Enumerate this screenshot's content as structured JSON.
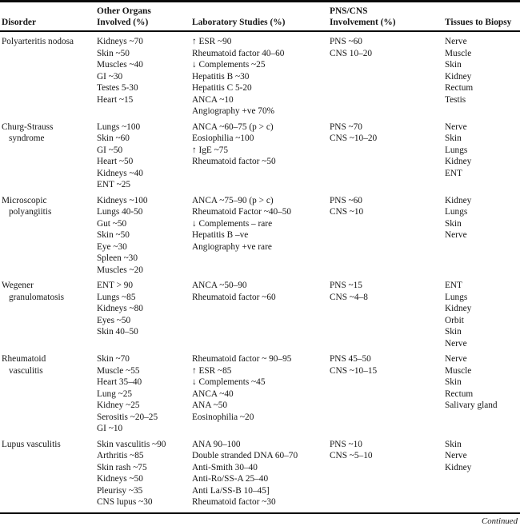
{
  "page": {
    "background": "#ffffff",
    "text_color": "#161616",
    "footer_continued": "Continued"
  },
  "table": {
    "headers": [
      {
        "lines": [
          "Disorder"
        ]
      },
      {
        "lines": [
          "Other Organs",
          "Involved (%)"
        ]
      },
      {
        "lines": [
          "Laboratory Studies (%)"
        ]
      },
      {
        "lines": [
          "PNS/CNS",
          "Involvement (%)"
        ]
      },
      {
        "lines": [
          "Tissues to Biopsy"
        ]
      }
    ],
    "rows": [
      {
        "disorder": [
          "Polyarteritis nodosa"
        ],
        "organs": [
          "Kidneys ~70",
          "Skin ~50",
          "Muscles ~40",
          "GI ~30",
          "Testes 5-30",
          "Heart ~15"
        ],
        "labs": [
          "↑ ESR ~90",
          "Rheumatoid factor 40–60",
          "↓ Complements ~25",
          "Hepatitis B ~30",
          "Hepatitis C 5-20",
          "ANCA ~10",
          "Angiography +ve 70%"
        ],
        "pns_cns": [
          "PNS ~60",
          "CNS 10–20"
        ],
        "tissues": [
          "Nerve",
          "Muscle",
          "Skin",
          "Kidney",
          "Rectum",
          "Testis"
        ]
      },
      {
        "disorder": [
          "Churg-Strauss",
          "syndrome"
        ],
        "organs": [
          "Lungs ~100",
          "Skin ~60",
          "GI ~50",
          "Heart ~50",
          "Kidneys ~40",
          "ENT ~25"
        ],
        "labs": [
          "ANCA ~60–75 (p > c)",
          "Eosiophilia ~100",
          "↑ IgE ~75",
          "Rheumatoid factor ~50"
        ],
        "pns_cns": [
          "PNS ~70",
          "CNS ~10–20"
        ],
        "tissues": [
          "Nerve",
          "Skin",
          "Lungs",
          "Kidney",
          "ENT"
        ]
      },
      {
        "disorder": [
          "Microscopic",
          "polyangiitis"
        ],
        "organs": [
          "Kidneys ~100",
          "Lungs 40-50",
          "Gut ~50",
          "Skin ~50",
          "Eye ~30",
          "Spleen ~30",
          "Muscles ~20"
        ],
        "labs": [
          "ANCA ~75–90 (p > c)",
          "Rheumatoid Factor ~40–50",
          "↓ Complements – rare",
          "Hepatitis B –ve",
          "Angiography +ve rare"
        ],
        "pns_cns": [
          "PNS ~60",
          "CNS ~10"
        ],
        "tissues": [
          "Kidney",
          "Lungs",
          "Skin",
          "Nerve"
        ]
      },
      {
        "disorder": [
          "Wegener",
          "granulomatosis"
        ],
        "organs": [
          "ENT > 90",
          "Lungs ~85",
          "Kidneys ~80",
          "Eyes ~50",
          "Skin 40–50"
        ],
        "labs": [
          "ANCA ~50–90",
          "Rheumatoid factor ~60"
        ],
        "pns_cns": [
          "PNS ~15",
          "CNS ~4–8"
        ],
        "tissues": [
          "ENT",
          "Lungs",
          "Kidney",
          "Orbit",
          "Skin",
          "Nerve"
        ]
      },
      {
        "disorder": [
          "Rheumatoid",
          "vasculitis"
        ],
        "organs": [
          "Skin ~70",
          "Muscle ~55",
          "Heart 35–40",
          "Lung ~25",
          "Kidney ~25",
          "Serositis ~20–25",
          "GI ~10"
        ],
        "labs": [
          "Rheumatoid factor ~ 90–95",
          "↑ ESR ~85",
          "↓ Complements ~45",
          "ANCA ~40",
          "ANA ~50",
          "Eosinophilia ~20"
        ],
        "pns_cns": [
          "PNS 45–50",
          "CNS ~10–15"
        ],
        "tissues": [
          "Nerve",
          "Muscle",
          "Skin",
          "Rectum",
          "Salivary gland"
        ]
      },
      {
        "disorder": [
          "Lupus vasculitis"
        ],
        "organs": [
          "Skin vasculitis ~90",
          "Arthritis ~85",
          "Skin rash ~75",
          "Kidneys ~50",
          "Pleurisy ~35",
          "CNS lupus ~30"
        ],
        "labs": [
          "ANA 90–100",
          "Double stranded DNA 60–70",
          "Anti-Smith 30–40",
          "Anti-Ro/SS-A 25–40",
          "Anti La/SS-B 10–45]",
          "Rheumatoid factor ~30"
        ],
        "pns_cns": [
          "PNS ~10",
          "CNS ~5–10"
        ],
        "tissues": [
          "Skin",
          "Nerve",
          "Kidney"
        ]
      }
    ]
  }
}
